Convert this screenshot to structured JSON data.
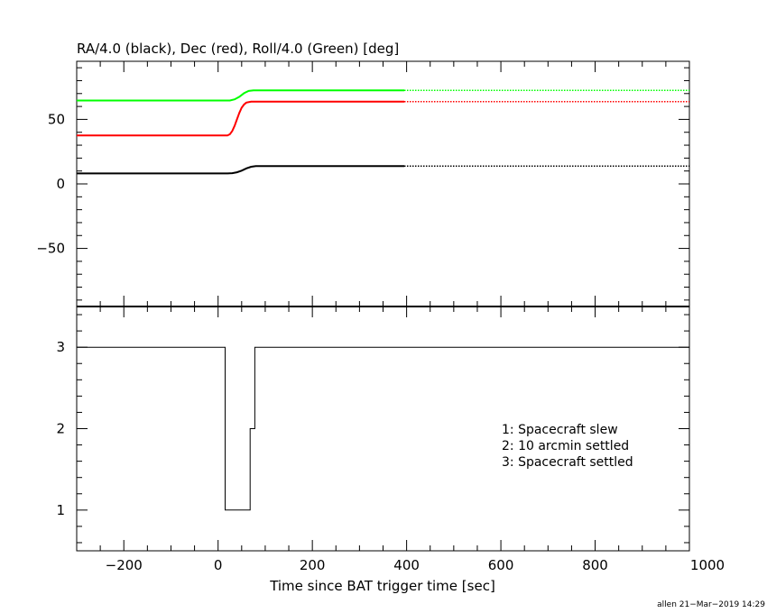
{
  "chart_data": [
    {
      "type": "line",
      "title": "RA/4.0 (black), Dec (red), Roll/4.0 (Green) [deg]",
      "xlim": [
        -300,
        1000
      ],
      "ylim": [
        -95,
        95
      ],
      "xticks_major": [
        -200,
        0,
        200,
        400,
        600,
        800,
        1000
      ],
      "yticks_major": [
        -50,
        0,
        50
      ],
      "ytick_labels": [
        "−50",
        "0",
        "50"
      ],
      "series": [
        {
          "color": "#000000",
          "solid": [
            [
              -300,
              8.1
            ],
            [
              20,
              8.1
            ],
            [
              30,
              8.3
            ],
            [
              40,
              9.0
            ],
            [
              50,
              10.3
            ],
            [
              60,
              12.0
            ],
            [
              70,
              13.3
            ],
            [
              80,
              13.8
            ],
            [
              395,
              13.8
            ]
          ],
          "dotted": [
            [
              395,
              13.8
            ],
            [
              1000,
              13.8
            ]
          ]
        },
        {
          "color": "#ff0000",
          "solid": [
            [
              -300,
              37.5
            ],
            [
              20,
              37.5
            ],
            [
              25,
              38.5
            ],
            [
              30,
              41
            ],
            [
              35,
              45
            ],
            [
              40,
              50
            ],
            [
              45,
              55
            ],
            [
              50,
              59
            ],
            [
              55,
              61.5
            ],
            [
              60,
              63
            ],
            [
              70,
              63.7
            ],
            [
              80,
              63.8
            ],
            [
              395,
              63.8
            ]
          ],
          "dotted": [
            [
              395,
              63.8
            ],
            [
              1000,
              63.8
            ]
          ]
        },
        {
          "color": "#00ff00",
          "solid": [
            [
              -300,
              64.6
            ],
            [
              25,
              64.6
            ],
            [
              35,
              65.5
            ],
            [
              45,
              67.5
            ],
            [
              55,
              70.3
            ],
            [
              65,
              72.0
            ],
            [
              75,
              72.5
            ],
            [
              395,
              72.5
            ]
          ],
          "dotted": [
            [
              395,
              72.5
            ],
            [
              1000,
              72.5
            ]
          ]
        }
      ]
    },
    {
      "type": "line",
      "xlabel": "Time since BAT trigger time [sec]",
      "xlim": [
        -300,
        1000
      ],
      "ylim": [
        0.5,
        3.5
      ],
      "xticks_major": [
        -200,
        0,
        200,
        400,
        600,
        800,
        1000
      ],
      "xtick_labels": [
        "−200",
        "0",
        "200",
        "400",
        "600",
        "800",
        "1000"
      ],
      "yticks_major": [
        1,
        2,
        3
      ],
      "ytick_labels": [
        "1",
        "2",
        "3"
      ],
      "series": [
        {
          "color": "#000000",
          "step": [
            [
              -300,
              3
            ],
            [
              15,
              3
            ],
            [
              15,
              1
            ],
            [
              68,
              1
            ],
            [
              68,
              2
            ],
            [
              78,
              2
            ],
            [
              78,
              3
            ],
            [
              1000,
              3
            ]
          ]
        }
      ],
      "legend_position": "center-right",
      "legend": [
        "1: Spacecraft slew",
        "2: 10 arcmin settled",
        "3: Spacecraft settled"
      ]
    }
  ],
  "footer": "allen 21−Mar−2019 14:29"
}
